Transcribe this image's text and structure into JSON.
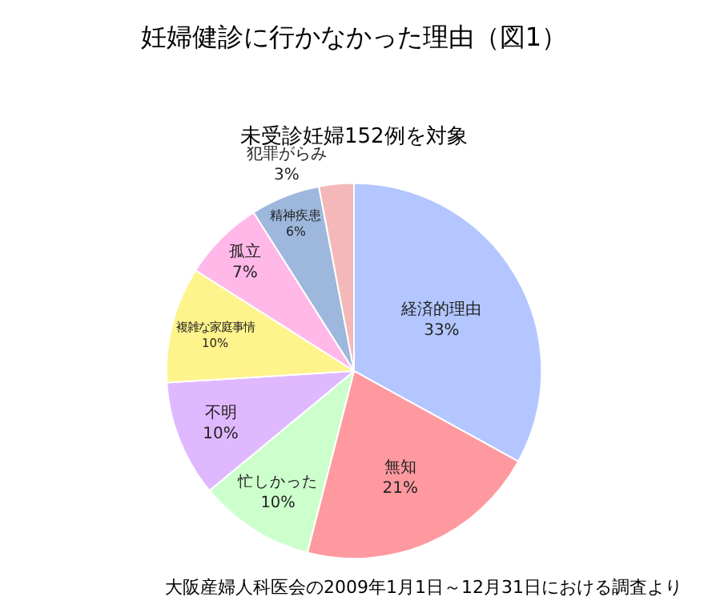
{
  "chart_data": {
    "type": "pie",
    "title": "妊婦健診に行かなかった理由（図1）",
    "subtitle": "未受診妊婦152例を対象",
    "categories": [
      "経済的理由",
      "無知",
      "忙しかった",
      "不明",
      "複雑な家庭事情",
      "孤立",
      "精神疾患",
      "犯罪がらみ"
    ],
    "values": [
      33,
      21,
      10,
      10,
      10,
      7,
      6,
      3
    ],
    "value_labels": [
      "33%",
      "21%",
      "10%",
      "10%",
      "10%",
      "7%",
      "6%",
      "3%"
    ],
    "colors": [
      "#b3c6ff",
      "#ff99a0",
      "#ccffcc",
      "#e0b8ff",
      "#fff38c",
      "#ffb8e8",
      "#9db8dc",
      "#f5b8b8"
    ],
    "annotations": [
      "大阪産婦人科医会の2009年1月1日～12月31日における調査より"
    ],
    "legend": false
  }
}
